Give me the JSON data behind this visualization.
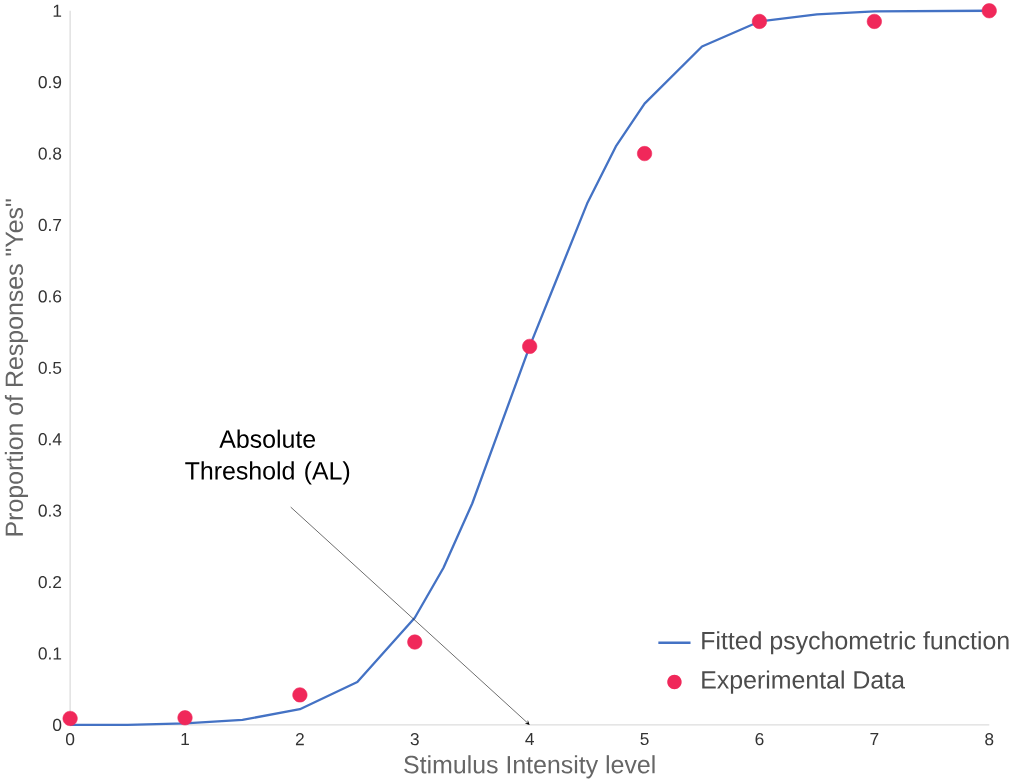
{
  "chart_data": {
    "type": "scatter",
    "xlabel": "Stimulus Intensity level",
    "ylabel": "Proportion of Responses \"Yes\"",
    "xlim": [
      0,
      8
    ],
    "ylim": [
      0,
      1
    ],
    "xticks": [
      0,
      1,
      2,
      3,
      4,
      5,
      6,
      7,
      8
    ],
    "yticks": [
      0,
      0.1,
      0.2,
      0.3,
      0.4,
      0.5,
      0.6,
      0.7,
      0.8,
      0.9,
      1
    ],
    "grid": false,
    "legend": "bottom right",
    "series": [
      {
        "name": "Fitted psychometric function",
        "type": "line",
        "marker": "none",
        "color": "#4472c4",
        "x": [
          0,
          0.5,
          1,
          1.5,
          2,
          2.5,
          3,
          3.25,
          3.5,
          3.75,
          4,
          4.25,
          4.5,
          4.75,
          5,
          5.5,
          6,
          6.5,
          7,
          8
        ],
        "values": [
          0,
          0,
          0.002,
          0.007,
          0.022,
          0.06,
          0.15,
          0.22,
          0.31,
          0.42,
          0.53,
          0.63,
          0.73,
          0.81,
          0.87,
          0.95,
          0.985,
          0.995,
          0.999,
          1
        ]
      },
      {
        "name": "Experimental Data",
        "type": "scatter",
        "marker": "circle",
        "color": "#f0285a",
        "x": [
          0,
          1,
          2,
          3,
          4,
          5,
          6,
          7,
          8
        ],
        "values": [
          0.009,
          0.01,
          0.042,
          0.116,
          0.53,
          0.8,
          0.985,
          0.985,
          1
        ]
      }
    ],
    "annotations": [
      "Absolute Threshold (AL)"
    ]
  }
}
